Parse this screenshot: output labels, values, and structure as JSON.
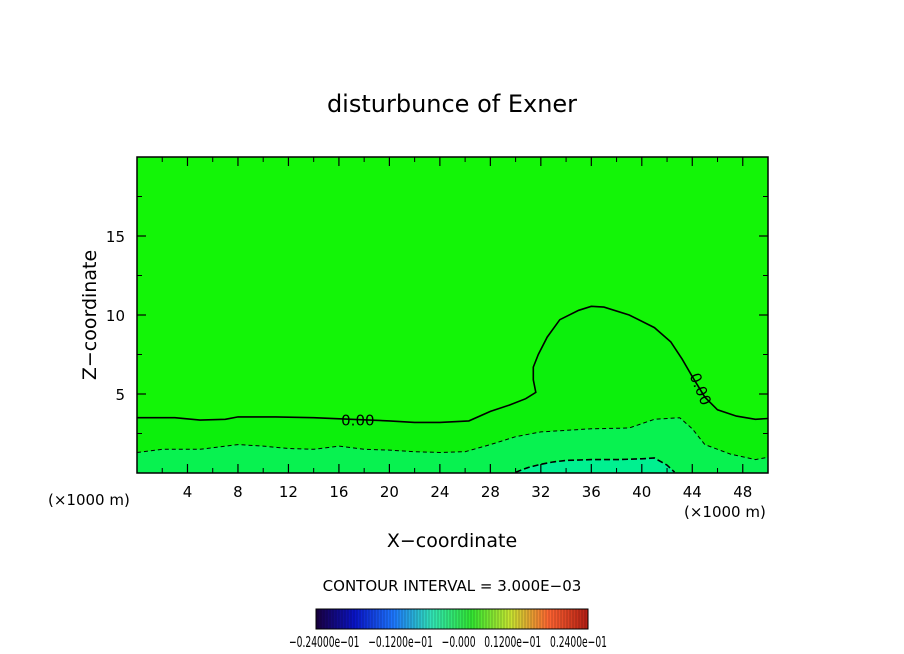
{
  "chart_data": {
    "type": "heatmap",
    "title": "disturbunce of Exner",
    "xlabel": "X−coordinate",
    "ylabel": "Z−coordinate",
    "x_unit_left": "(×1000 m)",
    "x_unit_right": "(×1000 m)",
    "xlim": [
      0,
      50
    ],
    "ylim": [
      0,
      20
    ],
    "x_ticks": [
      4,
      8,
      12,
      16,
      20,
      24,
      28,
      32,
      36,
      40,
      44,
      48
    ],
    "y_ticks": [
      5,
      10,
      15
    ],
    "contour_interval_text": "CONTOUR INTERVAL = 3.000E−03",
    "colorbar_labels": "−0.24000e−01   −0.1200e−01   −0.000   0.1200e−01   0.2400e−01",
    "contour_labels": [
      {
        "text": "0.00",
        "x": 17.5,
        "y": 3.3,
        "rotate": 0
      },
      {
        "text": "0.00",
        "x": 44.6,
        "y": 5.3,
        "rotate": 68
      }
    ],
    "contours": [
      {
        "level": "0.00",
        "style": "solid",
        "points": [
          [
            0,
            3.5
          ],
          [
            3,
            3.5
          ],
          [
            5,
            3.35
          ],
          [
            7,
            3.4
          ],
          [
            8,
            3.55
          ],
          [
            11,
            3.55
          ],
          [
            14,
            3.5
          ],
          [
            17,
            3.4
          ],
          [
            20,
            3.3
          ],
          [
            22,
            3.2
          ],
          [
            24,
            3.2
          ],
          [
            26.3,
            3.3
          ],
          [
            28,
            3.9
          ],
          [
            29.5,
            4.3
          ],
          [
            30.8,
            4.7
          ],
          [
            31.6,
            5.1
          ],
          [
            31.4,
            5.9
          ],
          [
            31.4,
            6.7
          ],
          [
            31.8,
            7.5
          ],
          [
            32.5,
            8.6
          ],
          [
            33.5,
            9.7
          ],
          [
            35,
            10.3
          ],
          [
            36,
            10.55
          ],
          [
            37,
            10.5
          ],
          [
            39,
            10.0
          ],
          [
            41,
            9.2
          ],
          [
            42.3,
            8.3
          ],
          [
            43.2,
            7.2
          ],
          [
            44,
            6.1
          ],
          [
            45,
            4.8
          ],
          [
            46,
            4.0
          ],
          [
            47.5,
            3.6
          ],
          [
            49,
            3.4
          ],
          [
            50,
            3.45
          ]
        ]
      },
      {
        "level": "-0.003",
        "style": "dashed",
        "points": [
          [
            0,
            1.3
          ],
          [
            2,
            1.5
          ],
          [
            5,
            1.5
          ],
          [
            8,
            1.8
          ],
          [
            10,
            1.7
          ],
          [
            12,
            1.55
          ],
          [
            14,
            1.5
          ],
          [
            16,
            1.7
          ],
          [
            18,
            1.5
          ],
          [
            20,
            1.45
          ],
          [
            22,
            1.35
          ],
          [
            24,
            1.3
          ],
          [
            26,
            1.35
          ],
          [
            28,
            1.8
          ],
          [
            30,
            2.3
          ],
          [
            32,
            2.6
          ],
          [
            36,
            2.8
          ],
          [
            39,
            2.85
          ],
          [
            41,
            3.4
          ],
          [
            43,
            3.5
          ],
          [
            44,
            2.8
          ],
          [
            45,
            1.8
          ],
          [
            47,
            1.2
          ],
          [
            49,
            0.85
          ],
          [
            50,
            1.0
          ]
        ]
      },
      {
        "level": "-0.006",
        "style": "dashed",
        "points": [
          [
            30,
            0.05
          ],
          [
            31,
            0.35
          ],
          [
            32,
            0.55
          ],
          [
            33,
            0.7
          ],
          [
            34,
            0.8
          ],
          [
            36,
            0.85
          ],
          [
            38,
            0.85
          ],
          [
            40,
            0.9
          ],
          [
            41,
            0.95
          ],
          [
            42,
            0.5
          ],
          [
            42.6,
            0.05
          ]
        ]
      }
    ],
    "colors": {
      "background": "#0cf00c",
      "upper_band": "#22ff00",
      "lower_band": "#08f250",
      "core": "#00f090",
      "colorbar_stops": [
        "#1a0040",
        "#0a14c8",
        "#1e78ff",
        "#32e6b4",
        "#32e632",
        "#c8e632",
        "#ff6432",
        "#b41e14"
      ]
    }
  }
}
